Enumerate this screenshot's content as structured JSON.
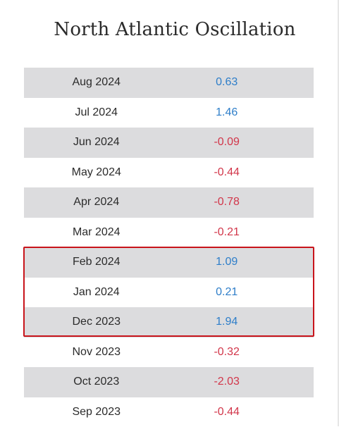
{
  "title": "North Atlantic Oscillation",
  "rows": [
    {
      "date": "Aug 2024",
      "value": "0.63",
      "sign": "pos"
    },
    {
      "date": "Jul 2024",
      "value": "1.46",
      "sign": "pos"
    },
    {
      "date": "Jun 2024",
      "value": "-0.09",
      "sign": "neg"
    },
    {
      "date": "May 2024",
      "value": "-0.44",
      "sign": "neg"
    },
    {
      "date": "Apr 2024",
      "value": "-0.78",
      "sign": "neg"
    },
    {
      "date": "Mar 2024",
      "value": "-0.21",
      "sign": "neg"
    },
    {
      "date": "Feb 2024",
      "value": "1.09",
      "sign": "pos"
    },
    {
      "date": "Jan 2024",
      "value": "0.21",
      "sign": "pos"
    },
    {
      "date": "Dec 2023",
      "value": "1.94",
      "sign": "pos"
    },
    {
      "date": "Nov 2023",
      "value": "-0.32",
      "sign": "neg"
    },
    {
      "date": "Oct 2023",
      "value": "-2.03",
      "sign": "neg"
    },
    {
      "date": "Sep 2023",
      "value": "-0.44",
      "sign": "neg"
    }
  ],
  "colors": {
    "positive": "#2e7ec9",
    "negative": "#d2364a",
    "row_shade": "#dcdcde",
    "highlight_border": "#c8141b"
  },
  "highlighted_rows": [
    "Feb 2024",
    "Jan 2024",
    "Dec 2023"
  ]
}
